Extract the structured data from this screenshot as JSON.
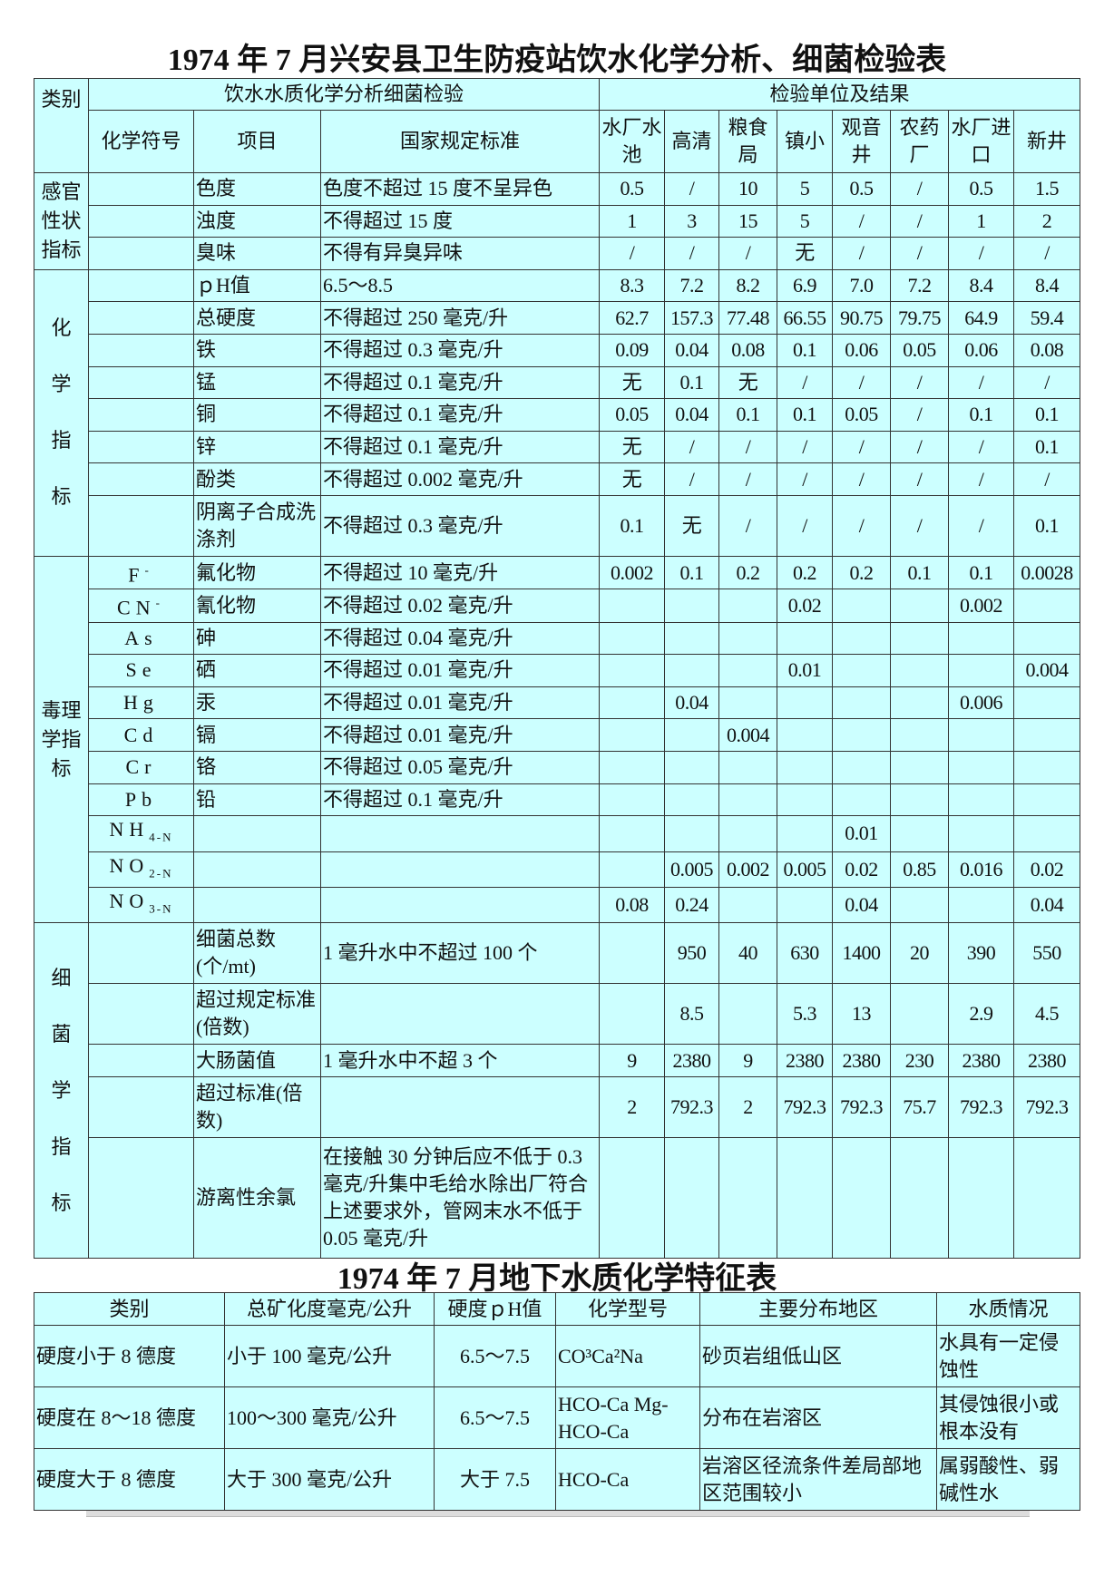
{
  "title": "1974 年 7 月兴安县卫生防疫站饮水化学分析、细菌检验表",
  "header": {
    "category": "类别",
    "group_left": "饮水水质化学分析细菌检验",
    "group_right": "检验单位及结果",
    "symbol": "化学符号",
    "item": "项目",
    "standard": "国家规定标准",
    "units": [
      "水厂水池",
      "高清",
      "粮食局",
      "镇小",
      "观音井",
      "农药厂",
      "水厂进口",
      "新井"
    ]
  },
  "groups": [
    {
      "label": "感官性状指标",
      "vertical": false,
      "rows": [
        {
          "sym": "",
          "item": "色度",
          "std": "色度不超过 15 度不呈异色",
          "v": [
            "0.5",
            "/",
            "10",
            "5",
            "0.5",
            "/",
            "0.5",
            "1.5"
          ]
        },
        {
          "sym": "",
          "item": "浊度",
          "std": "不得超过 15 度",
          "v": [
            "1",
            "3",
            "15",
            "5",
            "/",
            "/",
            "1",
            "2"
          ]
        },
        {
          "sym": "",
          "item": "臭味",
          "std": "不得有异臭异味",
          "v": [
            "/",
            "/",
            "/",
            "无",
            "/",
            "/",
            "/",
            "/"
          ]
        }
      ]
    },
    {
      "label": "化学指标",
      "vertical": true,
      "rows": [
        {
          "sym": "",
          "item": "ｐH值",
          "std": "6.5～8.5",
          "v": [
            "8.3",
            "7.2",
            "8.2",
            "6.9",
            "7.0",
            "7.2",
            "8.4",
            "8.4"
          ]
        },
        {
          "sym": "",
          "item": "总硬度",
          "std": "不得超过 250 毫克/升",
          "v": [
            "62.7",
            "157.3",
            "77.48",
            "66.55",
            "90.75",
            "79.75",
            "64.9",
            "59.4"
          ]
        },
        {
          "sym": "",
          "item": "铁",
          "std": "不得超过 0.3 毫克/升",
          "v": [
            "0.09",
            "0.04",
            "0.08",
            "0.1",
            "0.06",
            "0.05",
            "0.06",
            "0.08"
          ]
        },
        {
          "sym": "",
          "item": "锰",
          "std": "不得超过 0.1 毫克/升",
          "v": [
            "无",
            "0.1",
            "无",
            "/",
            "/",
            "/",
            "/",
            "/"
          ]
        },
        {
          "sym": "",
          "item": "铜",
          "std": "不得超过 0.1 毫克/升",
          "v": [
            "0.05",
            "0.04",
            "0.1",
            "0.1",
            "0.05",
            "/",
            "0.1",
            "0.1"
          ]
        },
        {
          "sym": "",
          "item": "锌",
          "std": "不得超过 0.1 毫克/升",
          "v": [
            "无",
            "/",
            "/",
            "/",
            "/",
            "/",
            "/",
            "0.1"
          ]
        },
        {
          "sym": "",
          "item": "酚类",
          "std": "不得超过 0.002 毫克/升",
          "v": [
            "无",
            "/",
            "/",
            "/",
            "/",
            "/",
            "/",
            "/"
          ]
        },
        {
          "sym": "",
          "item": "阴离子合成洗涤剂",
          "std": "不得超过 0.3 毫克/升",
          "v": [
            "0.1",
            "无",
            "/",
            "/",
            "/",
            "/",
            "/",
            "0.1"
          ],
          "tall": true
        }
      ]
    },
    {
      "label": "毒理学指标",
      "vertical": false,
      "rows": [
        {
          "sym": "F",
          "sup": "-",
          "item": "氟化物",
          "std": "不得超过 10 毫克/升",
          "v": [
            "0.002",
            "0.1",
            "0.2",
            "0.2",
            "0.2",
            "0.1",
            "0.1",
            "0.0028"
          ]
        },
        {
          "sym": "CN",
          "sup": "-",
          "item": "氰化物",
          "std": "不得超过 0.02 毫克/升",
          "v": [
            "",
            "",
            "",
            "0.02",
            "",
            "",
            "0.002",
            ""
          ]
        },
        {
          "sym": "As",
          "item": "砷",
          "std": "不得超过 0.04 毫克/升",
          "v": [
            "",
            "",
            "",
            "",
            "",
            "",
            "",
            ""
          ]
        },
        {
          "sym": "Se",
          "item": "硒",
          "std": "不得超过 0.01 毫克/升",
          "v": [
            "",
            "",
            "",
            "0.01",
            "",
            "",
            "",
            "0.004"
          ]
        },
        {
          "sym": "Hg",
          "item": "汞",
          "std": "不得超过 0.01 毫克/升",
          "v": [
            "",
            "0.04",
            "",
            "",
            "",
            "",
            "0.006",
            ""
          ]
        },
        {
          "sym": "Cd",
          "item": "镉",
          "std": "不得超过 0.01 毫克/升",
          "v": [
            "",
            "",
            "0.004",
            "",
            "",
            "",
            "",
            ""
          ]
        },
        {
          "sym": "Cr",
          "item": "铬",
          "std": "不得超过 0.05 毫克/升",
          "v": [
            "",
            "",
            "",
            "",
            "",
            "",
            "",
            ""
          ]
        },
        {
          "sym": "Pb",
          "item": "铅",
          "std": "不得超过 0.1 毫克/升",
          "v": [
            "",
            "",
            "",
            "",
            "",
            "",
            "",
            ""
          ]
        },
        {
          "sym": "NH",
          "sub": "4-N",
          "item": "",
          "std": "",
          "v": [
            "",
            "",
            "",
            "",
            "0.01",
            "",
            "",
            ""
          ]
        },
        {
          "sym": "NO",
          "sub": "2-N",
          "item": "",
          "std": "",
          "v": [
            "",
            "0.005",
            "0.002",
            "0.005",
            "0.02",
            "0.85",
            "0.016",
            "0.02"
          ]
        },
        {
          "sym": "NO",
          "sub": "3-N",
          "item": "",
          "std": "",
          "v": [
            "0.08",
            "0.24",
            "",
            "",
            "0.04",
            "",
            "",
            "0.04"
          ]
        }
      ]
    },
    {
      "label": "细菌学指标",
      "vertical": true,
      "rows": [
        {
          "sym": "",
          "item": "细菌总数(个/mt)",
          "std": "1 毫升水中不超过 100 个",
          "v": [
            "",
            "950",
            "40",
            "630",
            "1400",
            "20",
            "390",
            "550"
          ],
          "tall": true
        },
        {
          "sym": "",
          "item": "超过规定标准(倍数)",
          "std": "",
          "v": [
            "",
            "8.5",
            "",
            "5.3",
            "13",
            "",
            "2.9",
            "4.5"
          ],
          "tall": true
        },
        {
          "sym": "",
          "item": "大肠菌值",
          "std": "1 毫升水中不超 3 个",
          "v": [
            "9",
            "2380",
            "9",
            "2380",
            "2380",
            "230",
            "2380",
            "2380"
          ]
        },
        {
          "sym": "",
          "item": "超过标准(倍数)",
          "std": "",
          "v": [
            "2",
            "792.3",
            "2",
            "792.3",
            "792.3",
            "75.7",
            "792.3",
            "792.3"
          ],
          "tall": true
        },
        {
          "sym": "",
          "item": "游离性余氯",
          "std": "在接触 30 分钟后应不低于 0.3 毫克/升集中毛给水除出厂符合上述要求外，管网末水不低于 0.05 毫克/升",
          "v": [
            "",
            "",
            "",
            "",
            "",
            "",
            "",
            ""
          ],
          "xl": true
        }
      ]
    }
  ],
  "subtable": {
    "title": "1974 年 7 月地下水质化学特征表",
    "headers": [
      "类别",
      "总矿化度毫克/公升",
      "硬度ｐH值",
      "化学型号",
      "主要分布地区",
      "水质情况"
    ],
    "rows": [
      [
        "硬度小于 8 德度",
        "小于 100 毫克/公升",
        "6.5～7.5",
        "CO³Ca²Na",
        "砂页岩组低山区",
        "水具有一定侵蚀性"
      ],
      [
        "硬度在 8～18 德度",
        "100～300 毫克/公升",
        "6.5～7.5",
        "HCO-Ca Mg-HCO-Ca",
        "分布在岩溶区",
        "其侵蚀很小或根本没有"
      ],
      [
        "硬度大于 8 德度",
        "大于 300 毫克/公升",
        "大于 7.5",
        "HCO-Ca",
        "岩溶区径流条件差局部地区范围较小",
        "属弱酸性、弱碱性水"
      ]
    ]
  },
  "colors": {
    "table_bg": "#ccffff",
    "border": "#333333"
  }
}
